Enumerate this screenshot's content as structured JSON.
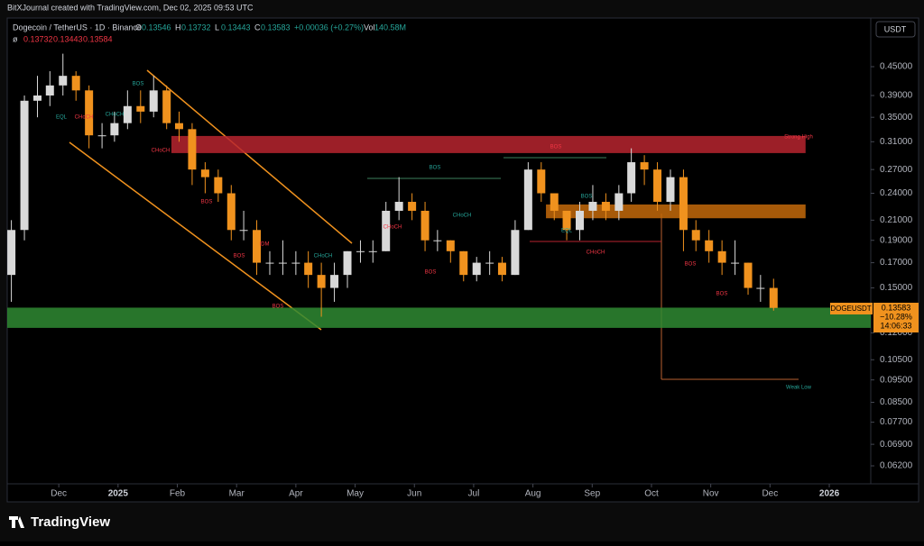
{
  "header": {
    "watermark": "BitXJournal created with TradingView.com, Dec 02, 2025 09:53 UTC",
    "symbol": "Dogecoin / TetherUS · 1D · Binance",
    "ohlc": [
      {
        "label": "O",
        "value": "0.13546"
      },
      {
        "label": "H",
        "value": "0.13732"
      },
      {
        "label": "L",
        "value": "0.13443"
      },
      {
        "label": "C",
        "value": "0.13583"
      }
    ],
    "change": "+0.00036 (+0.27%)",
    "volume_label": "Vol",
    "volume": "140.58M",
    "indicator": "ø",
    "indicator_values": [
      "0.13732",
      "0.13443",
      "0.13584"
    ]
  },
  "currency_button": "USDT",
  "price_label": {
    "symbol": "DOGEUSDT",
    "price": "0.13583",
    "change": "−10.28%",
    "countdown": "14:06:33"
  },
  "footer": {
    "logo": "TradingView"
  },
  "chart_data": {
    "type": "candlestick",
    "log_scale": true,
    "up_color": "#d9d9d9",
    "down_color": "#f0921e",
    "x": [
      0.2,
      0.42,
      0.64,
      0.85,
      1.07,
      1.29,
      1.51,
      1.73,
      1.94,
      2.16,
      2.38,
      2.6,
      2.82,
      3.03,
      3.25,
      3.47,
      3.69,
      3.91,
      4.12,
      4.34,
      4.56,
      4.78,
      5.0,
      5.21,
      5.43,
      5.65,
      5.87,
      6.09,
      6.3,
      6.52,
      6.74,
      6.96,
      7.18,
      7.39,
      7.61,
      7.83,
      8.05,
      8.27,
      8.48,
      8.7,
      8.92,
      9.14,
      9.36,
      9.57,
      9.79,
      10.01,
      10.23,
      10.45,
      10.66,
      10.88,
      11.1,
      11.32,
      11.54,
      11.75,
      11.97,
      12.19,
      12.41,
      12.63,
      12.84,
      13.06
    ],
    "open": [
      0.16,
      0.2,
      0.38,
      0.39,
      0.41,
      0.43,
      0.4,
      0.32,
      0.32,
      0.34,
      0.37,
      0.36,
      0.4,
      0.34,
      0.33,
      0.27,
      0.26,
      0.24,
      0.2,
      0.2,
      0.17,
      0.17,
      0.17,
      0.17,
      0.16,
      0.15,
      0.16,
      0.18,
      0.18,
      0.18,
      0.22,
      0.23,
      0.22,
      0.19,
      0.19,
      0.18,
      0.16,
      0.17,
      0.17,
      0.16,
      0.2,
      0.27,
      0.24,
      0.22,
      0.2,
      0.22,
      0.23,
      0.22,
      0.24,
      0.28,
      0.27,
      0.23,
      0.26,
      0.2,
      0.19,
      0.18,
      0.17,
      0.17,
      0.15,
      0.15
    ],
    "high": [
      0.21,
      0.39,
      0.43,
      0.44,
      0.48,
      0.44,
      0.41,
      0.34,
      0.36,
      0.4,
      0.4,
      0.43,
      0.41,
      0.36,
      0.34,
      0.28,
      0.27,
      0.25,
      0.22,
      0.21,
      0.18,
      0.19,
      0.18,
      0.18,
      0.17,
      0.17,
      0.18,
      0.19,
      0.19,
      0.23,
      0.26,
      0.24,
      0.23,
      0.2,
      0.19,
      0.18,
      0.175,
      0.18,
      0.175,
      0.21,
      0.28,
      0.28,
      0.24,
      0.22,
      0.23,
      0.25,
      0.24,
      0.25,
      0.3,
      0.29,
      0.28,
      0.27,
      0.27,
      0.21,
      0.2,
      0.19,
      0.19,
      0.17,
      0.16,
      0.157
    ],
    "low": [
      0.14,
      0.19,
      0.35,
      0.37,
      0.39,
      0.38,
      0.3,
      0.3,
      0.31,
      0.33,
      0.34,
      0.35,
      0.33,
      0.31,
      0.25,
      0.24,
      0.23,
      0.19,
      0.19,
      0.16,
      0.16,
      0.16,
      0.16,
      0.15,
      0.13,
      0.14,
      0.15,
      0.17,
      0.17,
      0.18,
      0.21,
      0.21,
      0.18,
      0.18,
      0.17,
      0.155,
      0.155,
      0.16,
      0.155,
      0.16,
      0.2,
      0.23,
      0.21,
      0.19,
      0.19,
      0.21,
      0.21,
      0.21,
      0.23,
      0.25,
      0.22,
      0.22,
      0.18,
      0.18,
      0.17,
      0.16,
      0.16,
      0.145,
      0.14,
      0.134
    ],
    "close": [
      0.2,
      0.38,
      0.39,
      0.41,
      0.43,
      0.4,
      0.32,
      0.32,
      0.34,
      0.37,
      0.36,
      0.4,
      0.34,
      0.33,
      0.27,
      0.26,
      0.24,
      0.2,
      0.2,
      0.17,
      0.17,
      0.17,
      0.17,
      0.16,
      0.15,
      0.16,
      0.18,
      0.18,
      0.18,
      0.22,
      0.23,
      0.22,
      0.19,
      0.19,
      0.18,
      0.16,
      0.17,
      0.17,
      0.16,
      0.2,
      0.27,
      0.24,
      0.22,
      0.2,
      0.22,
      0.23,
      0.22,
      0.24,
      0.28,
      0.27,
      0.23,
      0.26,
      0.2,
      0.19,
      0.18,
      0.17,
      0.17,
      0.15,
      0.15,
      0.13583
    ],
    "xlim": [
      0.13,
      14.7
    ],
    "xticks": [
      {
        "value": 1,
        "label": "Dec"
      },
      {
        "value": 2,
        "label": "2025"
      },
      {
        "value": 3,
        "label": "Feb"
      },
      {
        "value": 4,
        "label": "Mar"
      },
      {
        "value": 5,
        "label": "Apr"
      },
      {
        "value": 6,
        "label": "May"
      },
      {
        "value": 7,
        "label": "Jun"
      },
      {
        "value": 8,
        "label": "Jul"
      },
      {
        "value": 9,
        "label": "Aug"
      },
      {
        "value": 10,
        "label": "Sep"
      },
      {
        "value": 11,
        "label": "Oct"
      },
      {
        "value": 12,
        "label": "Nov"
      },
      {
        "value": 13,
        "label": "Dec"
      },
      {
        "value": 14,
        "label": "2026"
      }
    ],
    "ylim": [
      0.0567,
      0.573
    ],
    "yticks": [
      {
        "value": 0.45,
        "label": "0.45000"
      },
      {
        "value": 0.39,
        "label": "0.39000"
      },
      {
        "value": 0.35,
        "label": "0.35000"
      },
      {
        "value": 0.31,
        "label": "0.31000"
      },
      {
        "value": 0.27,
        "label": "0.27000"
      },
      {
        "value": 0.24,
        "label": "0.24000"
      },
      {
        "value": 0.21,
        "label": "0.21000"
      },
      {
        "value": 0.19,
        "label": "0.19000"
      },
      {
        "value": 0.17,
        "label": "0.17000"
      },
      {
        "value": 0.15,
        "label": "0.15000"
      },
      {
        "value": 0.12,
        "label": "0.12000"
      },
      {
        "value": 0.105,
        "label": "0.10500"
      },
      {
        "value": 0.095,
        "label": "0.09500"
      },
      {
        "value": 0.085,
        "label": "0.08500"
      },
      {
        "value": 0.077,
        "label": "0.07700"
      },
      {
        "value": 0.069,
        "label": "0.06900"
      },
      {
        "value": 0.062,
        "label": "0.06200"
      }
    ],
    "zones": [
      {
        "x": [
          2.9,
          13.6
        ],
        "y": [
          0.293,
          0.319
        ],
        "color": "#b7242f"
      },
      {
        "x": [
          9.22,
          13.6
        ],
        "y": [
          0.212,
          0.227
        ],
        "color": "#c46a0a"
      },
      {
        "x": [
          0.13,
          14.7
        ],
        "y": [
          0.123,
          0.136
        ],
        "color": "#2f8a32"
      }
    ],
    "annotations": [
      "EQL",
      "CHoCH",
      "CHoCH",
      "BOS",
      "CHoCH",
      "BOS",
      "IDM",
      "BOS",
      "BOS",
      "CHoCH",
      "BOS",
      "CHoCH",
      "CHoCH",
      "BOS",
      "BOS",
      "BOS",
      "EQL",
      "CHoCH",
      "BOS",
      "BOS",
      "Strong High",
      "Weak Low"
    ]
  }
}
